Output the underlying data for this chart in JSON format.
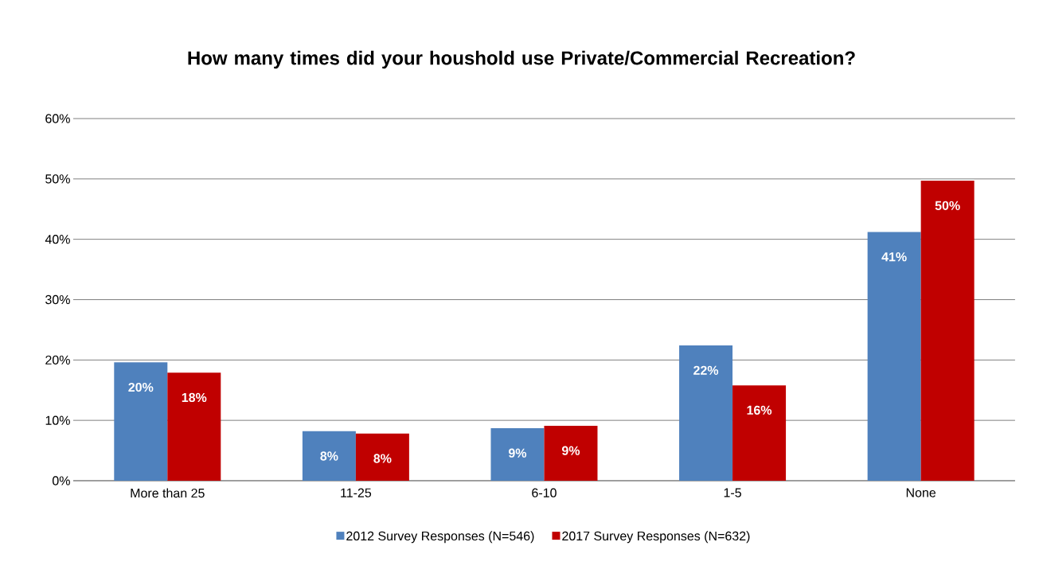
{
  "chart_data": {
    "type": "bar",
    "title": "How many times did your houshold use Private/Commercial Recreation?",
    "categories": [
      "More than 25",
      "11-25",
      "6-10",
      "1-5",
      "None"
    ],
    "series": [
      {
        "name": "2012 Survey Responses (N=546)",
        "color": "#4f81bd",
        "values": [
          19.6,
          8.2,
          8.7,
          22.4,
          41.2
        ],
        "value_labels": [
          "20%",
          "8%",
          "9%",
          "22%",
          "41%"
        ]
      },
      {
        "name": "2017 Survey Responses (N=632)",
        "color": "#c00000",
        "values": [
          17.9,
          7.8,
          9.1,
          15.8,
          49.7
        ],
        "value_labels": [
          "18%",
          "8%",
          "9%",
          "16%",
          "50%"
        ]
      }
    ],
    "ylim": [
      0,
      60
    ],
    "yticks": [
      {
        "value": 0,
        "label": "0%"
      },
      {
        "value": 10,
        "label": "10%"
      },
      {
        "value": 20,
        "label": "20%"
      },
      {
        "value": 30,
        "label": "30%"
      },
      {
        "value": 40,
        "label": "40%"
      },
      {
        "value": 50,
        "label": "50%"
      },
      {
        "value": 60,
        "label": "60%"
      }
    ],
    "grid": "y",
    "legend": "bottom"
  }
}
